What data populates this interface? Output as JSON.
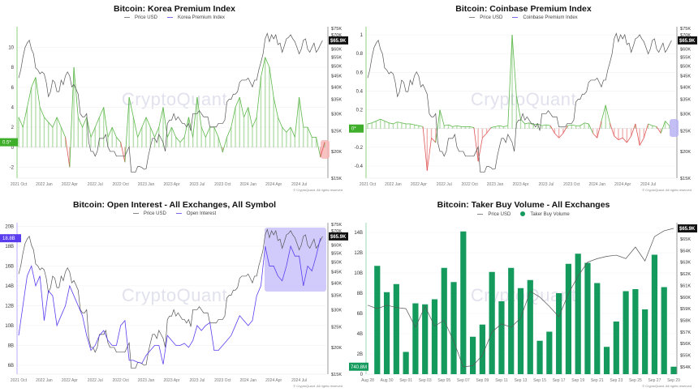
{
  "common": {
    "watermark": "CryptoQuant",
    "copyright": "© CryptoQuant. All rights reserved",
    "price_tag": "$65.9K",
    "colors": {
      "price": "#555555",
      "positive": "#5cb84a",
      "negative": "#e05555",
      "oi": "#5b3df0",
      "bar": "#159a5e",
      "tag_bg": "#111111"
    }
  },
  "price_usd_k_weekly": [
    44,
    48,
    55,
    61,
    64,
    66,
    60,
    57,
    49,
    48,
    46,
    47,
    46,
    42,
    36,
    38,
    43,
    42,
    38,
    38,
    43,
    41,
    45,
    47,
    45,
    40,
    41,
    39,
    37,
    30,
    29,
    29,
    30,
    22,
    20,
    20,
    19,
    20,
    23,
    23,
    23,
    24,
    21,
    20,
    20,
    20,
    19,
    19,
    19,
    19,
    19,
    20,
    21,
    16,
    16,
    16,
    17,
    17,
    16.8,
    16.5,
    16.6,
    19,
    21,
    23,
    23,
    22,
    24,
    23,
    22,
    20,
    27,
    28,
    28,
    30,
    28,
    29,
    28,
    27,
    27,
    26,
    27,
    25,
    30,
    30,
    30,
    31,
    30,
    29,
    29,
    29,
    26,
    26,
    26,
    26,
    27,
    27,
    27,
    28,
    34,
    35,
    35,
    37,
    37,
    38,
    42,
    43,
    43,
    43,
    44,
    42,
    40,
    43,
    43,
    48,
    52,
    57,
    67,
    71,
    65,
    70,
    67,
    70,
    63,
    64,
    58,
    62,
    67,
    68,
    70,
    67,
    65,
    61,
    57,
    60,
    66,
    67,
    60,
    58,
    61,
    64,
    58,
    60,
    63,
    65.9
  ],
  "chart_data": [
    {
      "type": "line",
      "title": "Bitcoin: Korea Premium Index",
      "legend": [
        "Price USD",
        "Korea Premium Index"
      ],
      "x_labels": [
        "2021 Oct",
        "2022 Jan",
        "2022 Apr",
        "2022 Jul",
        "2022 Oct",
        "2023 Jan",
        "2023 Apr",
        "2023 Jul",
        "2023 Oct",
        "2024 Jan",
        "2024 Apr",
        "2024 Jul"
      ],
      "y_left": {
        "range": [
          -3.1,
          11.9
        ],
        "ticks": [
          -2,
          0,
          2,
          4,
          6,
          8,
          10
        ],
        "labels": [
          "-2",
          "0",
          "2",
          "4",
          "6",
          "8",
          "10"
        ]
      },
      "y_right": {
        "scale": "log",
        "range": [
          15,
          75
        ],
        "ticks": [
          15,
          20,
          25,
          30,
          35,
          40,
          45,
          50,
          55,
          60,
          70,
          75
        ],
        "labels": [
          "$15K",
          "$20K",
          "$25K",
          "$30K",
          "$35K",
          "$40K",
          "$45K",
          "$50K",
          "$55K",
          "$60K",
          "$70K",
          "$75K"
        ]
      },
      "current_value_tag": "0.5*",
      "current_value": 0.5,
      "series_name": "Korea Premium Index",
      "values_biweekly": [
        3,
        2,
        4,
        6,
        7,
        4,
        3,
        2.5,
        2,
        3,
        2,
        1,
        -2,
        8,
        3,
        2,
        3,
        1,
        2,
        3,
        4,
        1,
        2,
        1,
        0.5,
        -1.5,
        5,
        3,
        1,
        2,
        3,
        2,
        1,
        2,
        4,
        1,
        2,
        1,
        0.5,
        1,
        3,
        1,
        5,
        2,
        1,
        2,
        2,
        1,
        -0.5,
        1,
        2,
        4,
        5,
        3,
        4,
        2,
        3,
        7,
        9,
        8,
        5,
        3,
        2,
        1.5,
        2,
        1,
        5,
        2,
        2,
        1,
        1,
        -1,
        0.5
      ],
      "highlight_color": "#f6b3b3"
    },
    {
      "type": "line",
      "title": "Bitcoin: Coinbase Premium Index",
      "legend": [
        "Price USD",
        "Coinbase Premium Index"
      ],
      "x_labels": [
        "2021 Oct",
        "2022 Jan",
        "2022 Apr",
        "2022 Jul",
        "2022 Oct",
        "2023 Jan",
        "2023 Apr",
        "2023 Jul",
        "2023 Oct",
        "2024 Jan",
        "2024 Apr",
        "2024 Jul"
      ],
      "y_left": {
        "range": [
          -0.53,
          1.07
        ],
        "ticks": [
          -0.4,
          -0.2,
          0,
          0.2,
          0.4,
          0.6,
          0.8,
          1
        ],
        "labels": [
          "-0.4",
          "-0.2",
          "0",
          "0.2",
          "0.4",
          "0.6",
          "0.8",
          "1"
        ]
      },
      "y_right": {
        "scale": "log",
        "range": [
          15,
          75
        ],
        "ticks": [
          15,
          20,
          25,
          30,
          35,
          40,
          45,
          50,
          55,
          60,
          70,
          75
        ],
        "labels": [
          "$15K",
          "$20K",
          "$25K",
          "$30K",
          "$35K",
          "$40K",
          "$45K",
          "$50K",
          "$55K",
          "$60K",
          "$70K",
          "$75K"
        ]
      },
      "current_value_tag": "0*",
      "current_value": 0,
      "series_name": "Coinbase Premium Index",
      "values_biweekly": [
        0.05,
        0.06,
        0.08,
        0.1,
        0.08,
        0.06,
        0.05,
        0.07,
        0.06,
        0.05,
        0.05,
        0.04,
        0.03,
        0.02,
        -0.45,
        -0.1,
        -0.15,
        0.2,
        0.03,
        0.04,
        0.02,
        0.03,
        0.02,
        0.02,
        0.02,
        0.01,
        -0.35,
        -0.1,
        -0.05,
        0.01,
        0.02,
        0.03,
        0.02,
        0.03,
        1.0,
        0.35,
        0.1,
        0.05,
        0.06,
        0.04,
        0.05,
        0.03,
        0.04,
        0.03,
        -0.05,
        -0.1,
        -0.05,
        0.03,
        0.04,
        0.03,
        0.03,
        0.06,
        0.05,
        -0.05,
        -0.1,
        0.08,
        0.25,
        0.06,
        -0.08,
        -0.12,
        -0.1,
        -0.15,
        -0.08,
        0.05,
        -0.18,
        -0.1,
        0.05,
        0.03,
        0.02,
        -0.05,
        0.08,
        0.03
      ],
      "highlight_color": "#b9b4f5"
    },
    {
      "type": "line",
      "title": "Bitcoin: Open Interest - All Exchanges, All Symbol",
      "legend": [
        "Price USD",
        "Open Interest"
      ],
      "x_labels": [
        "2021 Oct",
        "2022 Jan",
        "2022 Apr",
        "2022 Jul",
        "2022 Oct",
        "2023 Jan",
        "2023 Apr",
        "2023 Jul",
        "2023 Oct",
        "2024 Jan",
        "2024 Apr",
        "2024 Jul"
      ],
      "y_left": {
        "range": [
          5.1,
          20.2
        ],
        "ticks": [
          6,
          8,
          10,
          12,
          14,
          16,
          18,
          20
        ],
        "labels": [
          "6B",
          "8B",
          "10B",
          "12B",
          "14B",
          "16B",
          "18B",
          "20B"
        ]
      },
      "y_right": {
        "scale": "log",
        "range": [
          15,
          75
        ],
        "ticks": [
          15,
          20,
          25,
          30,
          35,
          40,
          45,
          50,
          55,
          60,
          70,
          75
        ],
        "labels": [
          "$15K",
          "$20K",
          "$25K",
          "$30K",
          "$35K",
          "$40K",
          "$45K",
          "$50K",
          "$55K",
          "$60K",
          "$70K",
          "$75K"
        ]
      },
      "current_value_tag": "18.8B",
      "current_value": 18.8,
      "series_name": "Open Interest",
      "values_biweekly": [
        9,
        12,
        15,
        16,
        14,
        15,
        10.5,
        13.5,
        13,
        10,
        11,
        12,
        14,
        13,
        12,
        11,
        9,
        7.5,
        8,
        9,
        9.5,
        8.5,
        8,
        8,
        10,
        10.5,
        6.5,
        6.5,
        6.3,
        6.2,
        7,
        7.5,
        8,
        8,
        6.1,
        9,
        8.5,
        8,
        8,
        8.2,
        7.8,
        8.5,
        10,
        9.5,
        10,
        10.3,
        7.5,
        7.5,
        8,
        8.5,
        9,
        10,
        11,
        10.5,
        10,
        10.5,
        13,
        14,
        18,
        16,
        16,
        15,
        14.5,
        16,
        18,
        17,
        17,
        14,
        16,
        15.5,
        17,
        18.8
      ],
      "highlight_color": "#c9c2fb"
    },
    {
      "type": "bar",
      "title": "Bitcoin: Taker Buy Volume - All Exchanges",
      "legend": [
        "Price USD",
        "Taker Buy Volume"
      ],
      "x_labels": [
        "Aug 28",
        "Aug 30",
        "Sep 01",
        "Sep 03",
        "Sep 05",
        "Sep 07",
        "Sep 09",
        "Sep 11",
        "Sep 13",
        "Sep 15",
        "Sep 17",
        "Sep 19",
        "Sep 21",
        "Sep 23",
        "Sep 25",
        "Sep 27",
        "Sep 29"
      ],
      "y_left": {
        "range": [
          0,
          14.8
        ],
        "ticks": [
          0,
          2,
          4,
          6,
          8,
          10,
          12,
          14
        ],
        "labels": [
          "0",
          "2B",
          "4B",
          "6B",
          "8B",
          "10B",
          "12B",
          "14B"
        ]
      },
      "y_right": {
        "scale": "linear",
        "range": [
          53.37,
          66.25
        ],
        "ticks": [
          54,
          55,
          56,
          57,
          58,
          59,
          60,
          61,
          62,
          63,
          64,
          65
        ],
        "labels": [
          "$54K",
          "$55K",
          "$56K",
          "$57K",
          "$58K",
          "$59K",
          "$60K",
          "$61K",
          "$62K",
          "$63K",
          "$64K",
          "$65K"
        ]
      },
      "current_value_tag": "740.8M",
      "series_name": "Taker Buy Volume (B)",
      "bar_values": [
        10.7,
        8.1,
        8.9,
        2.2,
        7.0,
        6.9,
        7.4,
        10.5,
        9.1,
        14.1,
        3.7,
        4.9,
        10.1,
        7.2,
        10.5,
        8.5,
        9.3,
        3.3,
        4.2,
        8.0,
        10.9,
        11.9,
        11.0,
        9.0,
        2.7,
        5.2,
        8.2,
        8.4,
        6.4,
        11.8,
        8.6,
        0.74
      ],
      "price_daily_k": [
        59.3,
        59.0,
        59.3,
        59.1,
        59.0,
        57.4,
        59.2,
        57.5,
        58.0,
        56.2,
        54.0,
        54.1,
        55.0,
        57.0,
        57.7,
        57.4,
        58.2,
        60.5,
        60.0,
        59.2,
        58.3,
        60.3,
        61.8,
        63.0,
        63.3,
        63.5,
        63.6,
        63.3,
        64.3,
        63.1,
        65.2,
        65.7,
        65.9
      ]
    }
  ]
}
